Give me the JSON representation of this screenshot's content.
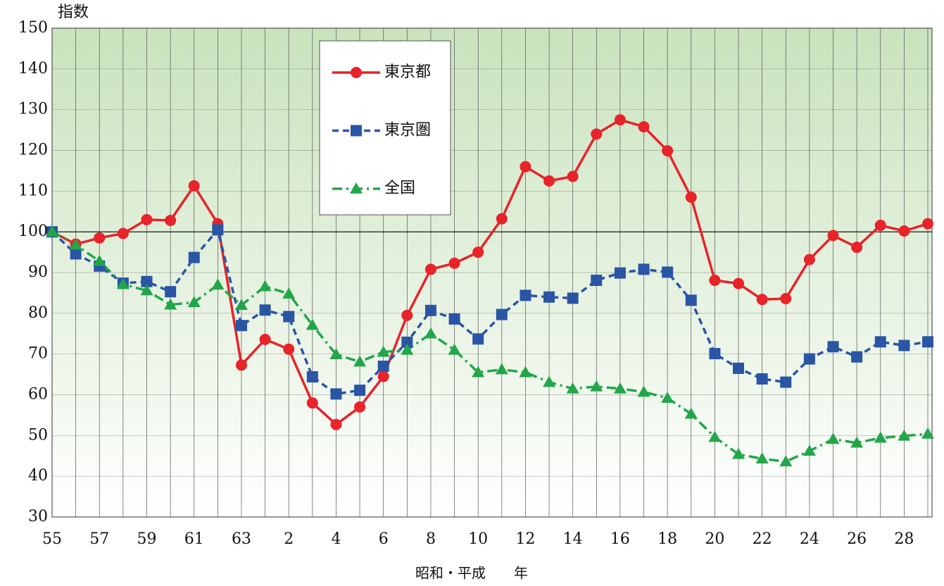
{
  "chart_data": {
    "type": "line",
    "y_label": "指数",
    "x_label": "昭和・平成　　年",
    "categories": [
      "55",
      null,
      "57",
      null,
      "59",
      null,
      "61",
      null,
      "63",
      null,
      "2",
      null,
      "4",
      null,
      "6",
      null,
      "8",
      null,
      "10",
      null,
      "12",
      null,
      "14",
      null,
      "16",
      null,
      "18",
      null,
      "20",
      null,
      "22",
      null,
      "24",
      null,
      "26",
      null,
      "28",
      null
    ],
    "series": [
      {
        "name": "東京都",
        "color": "#e8232a",
        "marker": "circle",
        "line_style": "solid",
        "values": [
          100,
          97,
          98.5,
          99.6,
          103,
          102.8,
          111.3,
          102,
          67.3,
          73.6,
          71.2,
          58,
          52.7,
          57,
          64.5,
          79.5,
          90.8,
          92.3,
          95,
          103.2,
          116,
          112.5,
          113.6,
          124,
          127.5,
          125.8,
          119.9,
          108.5,
          88.1,
          87.3,
          83.4,
          83.6,
          93.2,
          99.1,
          96.2,
          101.6,
          100.2,
          102
        ]
      },
      {
        "name": "東京圏",
        "color": "#2a55a5",
        "marker": "square",
        "line_style": "dashed",
        "values": [
          100,
          94.6,
          91.6,
          87.4,
          87.8,
          85.3,
          93.7,
          100.5,
          77,
          80.8,
          79.2,
          64.4,
          60.2,
          61.1,
          67,
          72.9,
          80.7,
          78.6,
          73.7,
          79.7,
          84.4,
          84,
          83.7,
          88.1,
          89.9,
          90.8,
          90.1,
          83.2,
          70.1,
          66.5,
          63.9,
          63.1,
          68.8,
          71.8,
          69.3,
          73,
          72.1,
          73
        ]
      },
      {
        "name": "全国",
        "color": "#22a64a",
        "marker": "triangle",
        "line_style": "dashdot",
        "values": [
          100,
          96.8,
          92.8,
          87.1,
          85.6,
          82.1,
          82.7,
          87,
          82,
          86.6,
          84.8,
          77.1,
          69.9,
          68.1,
          70.5,
          71,
          75,
          71,
          65.5,
          66.2,
          65.5,
          63.1,
          61.5,
          62,
          61.5,
          60.7,
          59.2,
          55.3,
          49.6,
          45.4,
          44.3,
          43.6,
          46.2,
          49.1,
          48.2,
          49.4,
          49.9,
          50.4
        ]
      }
    ],
    "ylim": [
      30,
      150
    ],
    "yticks": [
      30,
      40,
      50,
      60,
      70,
      80,
      90,
      100,
      110,
      120,
      130,
      140,
      150
    ],
    "reference_line": 100,
    "grid": true
  }
}
